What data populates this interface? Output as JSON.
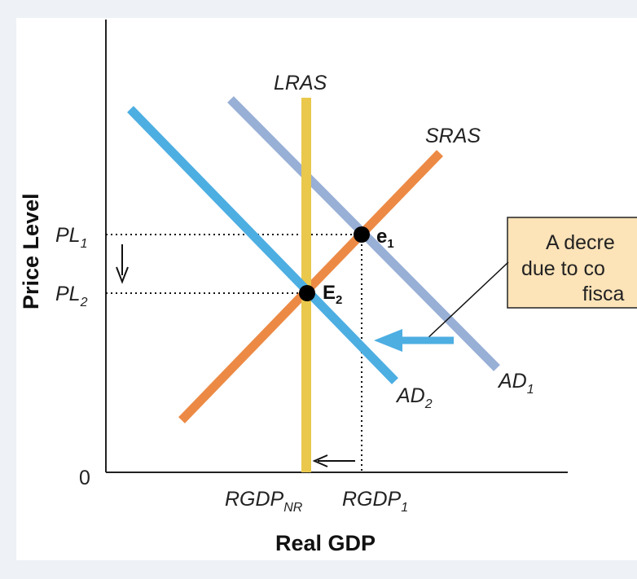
{
  "axes": {
    "y_title": "Price Level",
    "x_title": "Real GDP",
    "origin": "0"
  },
  "price_levels": {
    "pl1": {
      "main": "PL",
      "sub": "1"
    },
    "pl2": {
      "main": "PL",
      "sub": "2"
    }
  },
  "gdp_levels": {
    "nr": {
      "main": "RGDP",
      "sub": "NR"
    },
    "r1": {
      "main": "RGDP",
      "sub": "1"
    }
  },
  "curves": {
    "lras": {
      "label": "LRAS",
      "color": "#e9c84c"
    },
    "sras": {
      "label": "SRAS",
      "color": "#ec8a45"
    },
    "ad1": {
      "main": "AD",
      "sub": "1",
      "color": "#98afd6"
    },
    "ad2": {
      "main": "AD",
      "sub": "2",
      "color": "#4daee2"
    }
  },
  "points": {
    "e1": {
      "main": "e",
      "sub": "1"
    },
    "e2": {
      "main": "E",
      "sub": "2"
    }
  },
  "callout": {
    "lines": [
      "A decre",
      "due to co",
      "fisca"
    ],
    "background": "#fce3b8",
    "shift_arrow_color": "#4daee2"
  }
}
